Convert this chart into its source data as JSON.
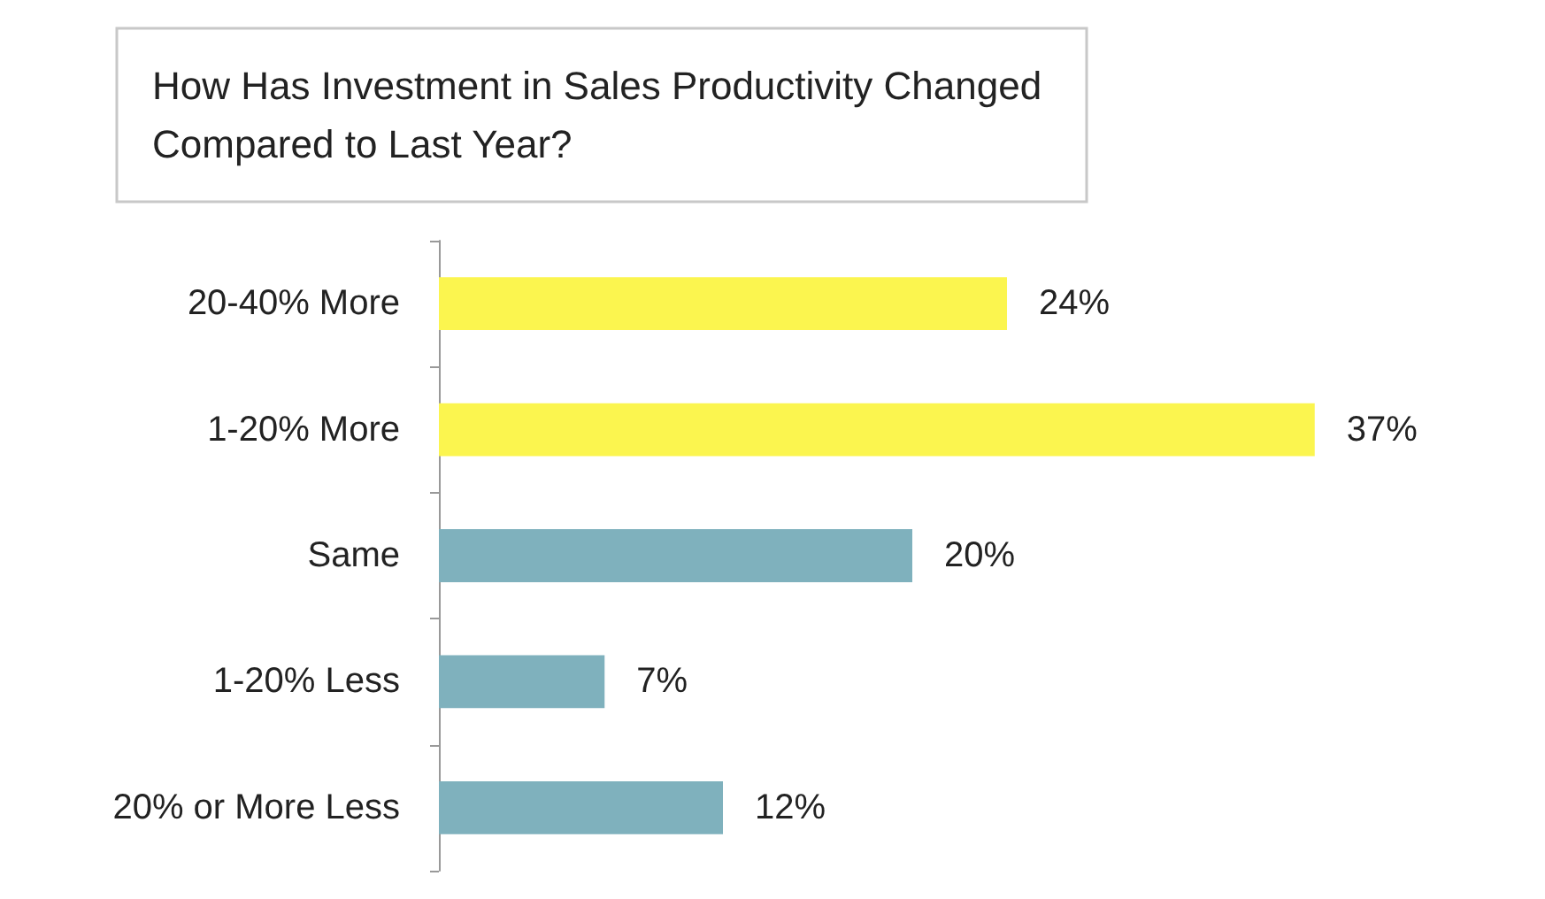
{
  "chart_data": {
    "type": "bar",
    "orientation": "horizontal",
    "title": "How Has Investment in Sales Productivity Changed\nCompared to Last Year?",
    "categories": [
      "20-40% More",
      "1-20% More",
      "Same",
      "1-20% Less",
      "20% or More Less"
    ],
    "values": [
      24,
      37,
      20,
      7,
      12
    ],
    "colors": [
      "#fbf54f",
      "#fbf54f",
      "#7fb1bd",
      "#7fb1bd",
      "#7fb1bd"
    ],
    "value_labels": [
      "24%",
      "37%",
      "20%",
      "7%",
      "12%"
    ]
  }
}
